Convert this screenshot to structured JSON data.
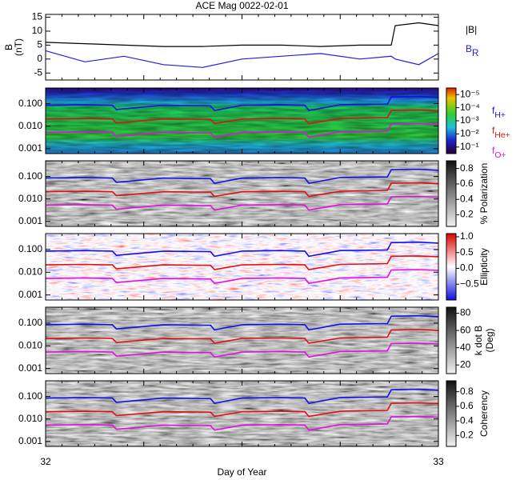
{
  "chart_data": [
    {
      "type": "line",
      "title": "ACE Mag 0022-02-01",
      "ylabel": [
        "B",
        "(nT)"
      ],
      "xlim": [
        32,
        33
      ],
      "ylim": [
        -7.5,
        16
      ],
      "yticks": [
        -5,
        0,
        5,
        10,
        15
      ],
      "x": [
        32,
        32.1,
        32.2,
        32.3,
        32.4,
        32.5,
        32.6,
        32.7,
        32.8,
        32.88,
        32.89,
        32.95,
        33
      ],
      "series": [
        {
          "name": "|B|",
          "color": "#000000",
          "values": [
            6,
            5.5,
            5,
            4.5,
            4.5,
            5,
            5,
            4.5,
            5,
            5,
            12,
            13,
            12
          ]
        },
        {
          "name": "B",
          "sub": "R",
          "color": "#1f1fe0",
          "values": [
            3,
            -1,
            1,
            -2,
            -3,
            0,
            1,
            2,
            0,
            1,
            0,
            -2,
            2
          ]
        }
      ]
    },
    {
      "type": "spectrogram",
      "palette": "rainbow",
      "legend": true,
      "xlim": [
        32,
        33
      ],
      "ylim": [
        0.0006,
        0.5
      ],
      "log": true,
      "yticks": [
        0.001,
        {
          "value": 0.01,
          "label": "0.010"
        },
        {
          "value": 0.1,
          "label": "0.100"
        }
      ],
      "clim": [
        -0.5,
        -5.5
      ],
      "cticks": [
        {
          "value": -5,
          "label": "10⁻⁵"
        },
        {
          "value": -4,
          "label": "10⁻⁴"
        },
        {
          "value": -3,
          "label": "10⁻³"
        },
        {
          "value": -2,
          "label": "10⁻²"
        },
        {
          "value": -1,
          "label": "10⁻¹"
        }
      ],
      "x": [
        32,
        32.1,
        32.17,
        32.18,
        32.3,
        32.42,
        32.43,
        32.5,
        32.6,
        32.66,
        32.67,
        32.75,
        32.87,
        32.88,
        32.95,
        33
      ],
      "series": [
        {
          "name": "f",
          "sub": "H+",
          "color": "#1010e8",
          "values": [
            0.085,
            0.09,
            0.085,
            0.055,
            0.085,
            0.08,
            0.05,
            0.085,
            0.09,
            0.085,
            0.05,
            0.09,
            0.095,
            0.2,
            0.21,
            0.19
          ]
        },
        {
          "name": "f",
          "sub": "He+",
          "color": "#e01010",
          "values": [
            0.021,
            0.022,
            0.021,
            0.014,
            0.021,
            0.02,
            0.013,
            0.021,
            0.022,
            0.021,
            0.013,
            0.022,
            0.024,
            0.05,
            0.052,
            0.048
          ]
        },
        {
          "name": "f",
          "sub": "O+",
          "color": "#e010e0",
          "values": [
            0.0053,
            0.0056,
            0.0053,
            0.0035,
            0.0053,
            0.005,
            0.0032,
            0.0053,
            0.0056,
            0.0053,
            0.0032,
            0.0056,
            0.006,
            0.0125,
            0.013,
            0.012
          ]
        }
      ]
    },
    {
      "type": "spectrogram",
      "palette": "gray",
      "xlim": [
        32,
        33
      ],
      "ylim": [
        0.0006,
        0.5
      ],
      "log": true,
      "yticks": [
        0.001,
        {
          "value": 0.01,
          "label": "0.010"
        },
        {
          "value": 0.1,
          "label": "0.100"
        }
      ],
      "colorbar_label": [
        "% Polarization"
      ],
      "clim": [
        0.05,
        0.9
      ],
      "cticks": [
        0.2,
        0.4,
        0.6,
        0.8
      ],
      "x": [
        32,
        32.1,
        32.17,
        32.18,
        32.3,
        32.42,
        32.43,
        32.5,
        32.6,
        32.66,
        32.67,
        32.75,
        32.87,
        32.88,
        32.95,
        33
      ],
      "series": [
        {
          "color": "#1010e8",
          "values": [
            0.085,
            0.09,
            0.085,
            0.055,
            0.085,
            0.08,
            0.05,
            0.085,
            0.09,
            0.085,
            0.05,
            0.09,
            0.095,
            0.2,
            0.21,
            0.19
          ]
        },
        {
          "color": "#e01010",
          "values": [
            0.021,
            0.022,
            0.021,
            0.014,
            0.021,
            0.02,
            0.013,
            0.021,
            0.022,
            0.021,
            0.013,
            0.022,
            0.024,
            0.05,
            0.052,
            0.048
          ]
        },
        {
          "color": "#e010e0",
          "values": [
            0.0053,
            0.0056,
            0.0053,
            0.0035,
            0.0053,
            0.005,
            0.0032,
            0.0053,
            0.0056,
            0.0053,
            0.0032,
            0.0056,
            0.006,
            0.0125,
            0.013,
            0.012
          ]
        }
      ]
    },
    {
      "type": "spectrogram",
      "palette": "redblue",
      "xlim": [
        32,
        33
      ],
      "ylim": [
        0.0006,
        0.5
      ],
      "log": true,
      "yticks": [
        0.001,
        {
          "value": 0.01,
          "label": "0.010"
        },
        {
          "value": 0.1,
          "label": "0.100"
        }
      ],
      "colorbar_label": [
        "Ellipticity"
      ],
      "clim": [
        -1,
        1.1
      ],
      "cticks": [
        {
          "value": -0.5,
          "label": "−0.5"
        },
        {
          "value": 0,
          "label": "0.0"
        },
        {
          "value": 0.5,
          "label": "0.5"
        },
        {
          "value": 1,
          "label": "1.0"
        }
      ],
      "x": [
        32,
        32.1,
        32.17,
        32.18,
        32.3,
        32.42,
        32.43,
        32.5,
        32.6,
        32.66,
        32.67,
        32.75,
        32.87,
        32.88,
        32.95,
        33
      ],
      "series": [
        {
          "color": "#1010e8",
          "values": [
            0.085,
            0.09,
            0.085,
            0.055,
            0.085,
            0.08,
            0.05,
            0.085,
            0.09,
            0.085,
            0.05,
            0.09,
            0.095,
            0.2,
            0.21,
            0.19
          ]
        },
        {
          "color": "#e01010",
          "values": [
            0.021,
            0.022,
            0.021,
            0.014,
            0.021,
            0.02,
            0.013,
            0.021,
            0.022,
            0.021,
            0.013,
            0.022,
            0.024,
            0.05,
            0.052,
            0.048
          ]
        },
        {
          "color": "#e010e0",
          "values": [
            0.0053,
            0.0056,
            0.0053,
            0.0035,
            0.0053,
            0.005,
            0.0032,
            0.0053,
            0.0056,
            0.0053,
            0.0032,
            0.0056,
            0.006,
            0.0125,
            0.013,
            0.012
          ]
        }
      ]
    },
    {
      "type": "spectrogram",
      "palette": "gray",
      "xlim": [
        32,
        33
      ],
      "ylim": [
        0.0006,
        0.5
      ],
      "log": true,
      "yticks": [
        0.001,
        {
          "value": 0.01,
          "label": "0.010"
        },
        {
          "value": 0.1,
          "label": "0.100"
        }
      ],
      "colorbar_label": [
        "k dot B",
        "(Deg)"
      ],
      "clim": [
        10,
        87
      ],
      "cticks": [
        20,
        40,
        60,
        80
      ],
      "x": [
        32,
        32.1,
        32.17,
        32.18,
        32.3,
        32.42,
        32.43,
        32.5,
        32.6,
        32.66,
        32.67,
        32.75,
        32.87,
        32.88,
        32.95,
        33
      ],
      "series": [
        {
          "color": "#1010e8",
          "values": [
            0.085,
            0.09,
            0.085,
            0.055,
            0.085,
            0.08,
            0.05,
            0.085,
            0.09,
            0.085,
            0.05,
            0.09,
            0.095,
            0.2,
            0.21,
            0.19
          ]
        },
        {
          "color": "#e01010",
          "values": [
            0.021,
            0.022,
            0.021,
            0.014,
            0.021,
            0.02,
            0.013,
            0.021,
            0.022,
            0.021,
            0.013,
            0.022,
            0.024,
            0.05,
            0.052,
            0.048
          ]
        },
        {
          "color": "#e010e0",
          "values": [
            0.0053,
            0.0056,
            0.0053,
            0.0035,
            0.0053,
            0.005,
            0.0032,
            0.0053,
            0.0056,
            0.0053,
            0.0032,
            0.0056,
            0.006,
            0.0125,
            0.013,
            0.012
          ]
        }
      ]
    },
    {
      "type": "spectrogram",
      "palette": "gray",
      "xlim": [
        32,
        33
      ],
      "ylim": [
        0.0006,
        0.5
      ],
      "log": true,
      "yticks": [
        0.001,
        {
          "value": 0.01,
          "label": "0.010"
        },
        {
          "value": 0.1,
          "label": "0.100"
        }
      ],
      "colorbar_label": [
        "Coherency"
      ],
      "clim": [
        0.05,
        0.95
      ],
      "cticks": [
        0.2,
        0.4,
        0.6,
        0.8
      ],
      "xticks": [
        32,
        33
      ],
      "xlabel": "Day of Year",
      "x": [
        32,
        32.1,
        32.17,
        32.18,
        32.3,
        32.42,
        32.43,
        32.5,
        32.6,
        32.66,
        32.67,
        32.75,
        32.87,
        32.88,
        32.95,
        33
      ],
      "series": [
        {
          "color": "#1010e8",
          "values": [
            0.085,
            0.09,
            0.085,
            0.055,
            0.085,
            0.08,
            0.05,
            0.085,
            0.09,
            0.085,
            0.05,
            0.09,
            0.095,
            0.2,
            0.21,
            0.19
          ]
        },
        {
          "color": "#e01010",
          "values": [
            0.021,
            0.022,
            0.021,
            0.014,
            0.021,
            0.02,
            0.013,
            0.021,
            0.022,
            0.021,
            0.013,
            0.022,
            0.024,
            0.05,
            0.052,
            0.048
          ]
        },
        {
          "color": "#e010e0",
          "values": [
            0.0053,
            0.0056,
            0.0053,
            0.0035,
            0.0053,
            0.005,
            0.0032,
            0.0053,
            0.0056,
            0.0053,
            0.0032,
            0.0056,
            0.006,
            0.0125,
            0.013,
            0.012
          ]
        }
      ]
    }
  ]
}
